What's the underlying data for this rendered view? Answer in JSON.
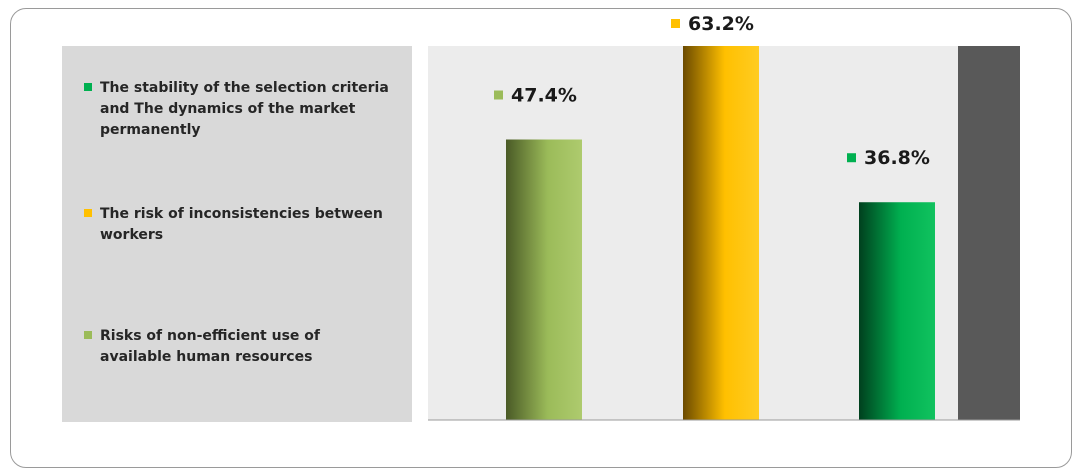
{
  "chart_data": {
    "type": "bar",
    "title": "",
    "xlabel": "",
    "ylabel": "",
    "legend_position": "left",
    "grid": false,
    "categories": [
      "Risks of non-efficient use of available human resources",
      "The risk of inconsistencies between workers",
      "The stability of the selection criteria and The dynamics of the market permanently"
    ],
    "values": [
      47.4,
      63.2,
      36.8
    ],
    "value_labels": [
      "47.4%",
      "63.2%",
      "36.8%"
    ],
    "colors": [
      "#9bbb59",
      "#ffc000",
      "#00b050"
    ],
    "ylim": [
      0,
      63.2
    ]
  },
  "legend": {
    "items": [
      {
        "label": "The stability of the selection criteria and The dynamics of the market permanently",
        "color": "#00b050"
      },
      {
        "label": "The risk of inconsistencies between workers",
        "color": "#ffc000"
      },
      {
        "label": "Risks of non-efficient use of available human resources",
        "color": "#9bbb59"
      }
    ]
  },
  "panel_colors": {
    "plot_background": "#ececec",
    "legend_background": "#d9d9d9",
    "right_bar": "#595959"
  }
}
